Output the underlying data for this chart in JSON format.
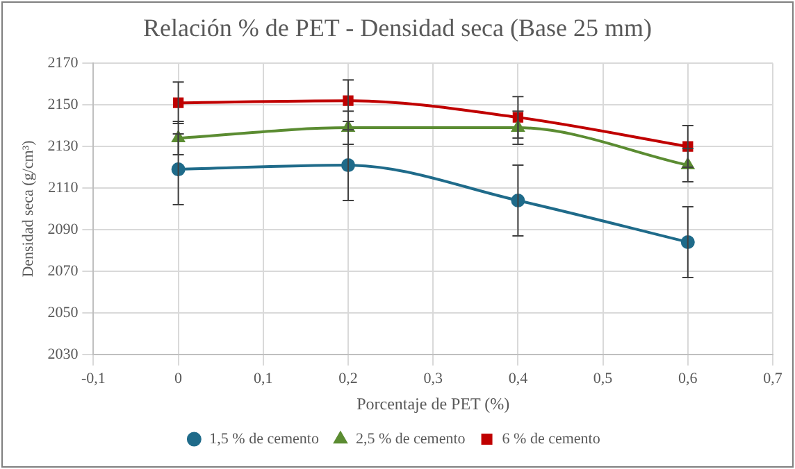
{
  "chart_data": {
    "type": "line",
    "title": "Relación % de PET - Densidad seca (Base 25 mm)",
    "xlabel": "Porcentaje de PET (%)",
    "ylabel": "Densidad seca (g/cm³)",
    "x": [
      0,
      0.2,
      0.4,
      0.6
    ],
    "xlim": [
      -0.1,
      0.7
    ],
    "xticks": [
      {
        "value": -0.1,
        "label": "-0,1"
      },
      {
        "value": 0,
        "label": "0"
      },
      {
        "value": 0.1,
        "label": "0,1"
      },
      {
        "value": 0.2,
        "label": "0,2"
      },
      {
        "value": 0.3,
        "label": "0,3"
      },
      {
        "value": 0.4,
        "label": "0,4"
      },
      {
        "value": 0.5,
        "label": "0,5"
      },
      {
        "value": 0.6,
        "label": "0,6"
      },
      {
        "value": 0.7,
        "label": "0,7"
      }
    ],
    "ylim": [
      2030,
      2170
    ],
    "yticks": [
      2030,
      2050,
      2070,
      2090,
      2110,
      2130,
      2150,
      2170
    ],
    "series": [
      {
        "name": "1,5 % de cemento",
        "color": "#1f6b8a",
        "marker": "circle",
        "values": [
          2119,
          2121,
          2104,
          2084
        ],
        "errors": [
          17,
          17,
          17,
          17
        ]
      },
      {
        "name": "2,5 % de cemento",
        "color": "#5b8c32",
        "marker": "triangle",
        "values": [
          2134,
          2139,
          2139,
          2121
        ],
        "errors": [
          8,
          8,
          8,
          8
        ]
      },
      {
        "name": "6 % de cemento",
        "color": "#c00000",
        "marker": "square",
        "values": [
          2151,
          2152,
          2144,
          2130
        ],
        "errors": [
          10,
          10,
          10,
          10
        ]
      }
    ],
    "grid": true,
    "legend": "bottom",
    "line_style": "solid"
  }
}
